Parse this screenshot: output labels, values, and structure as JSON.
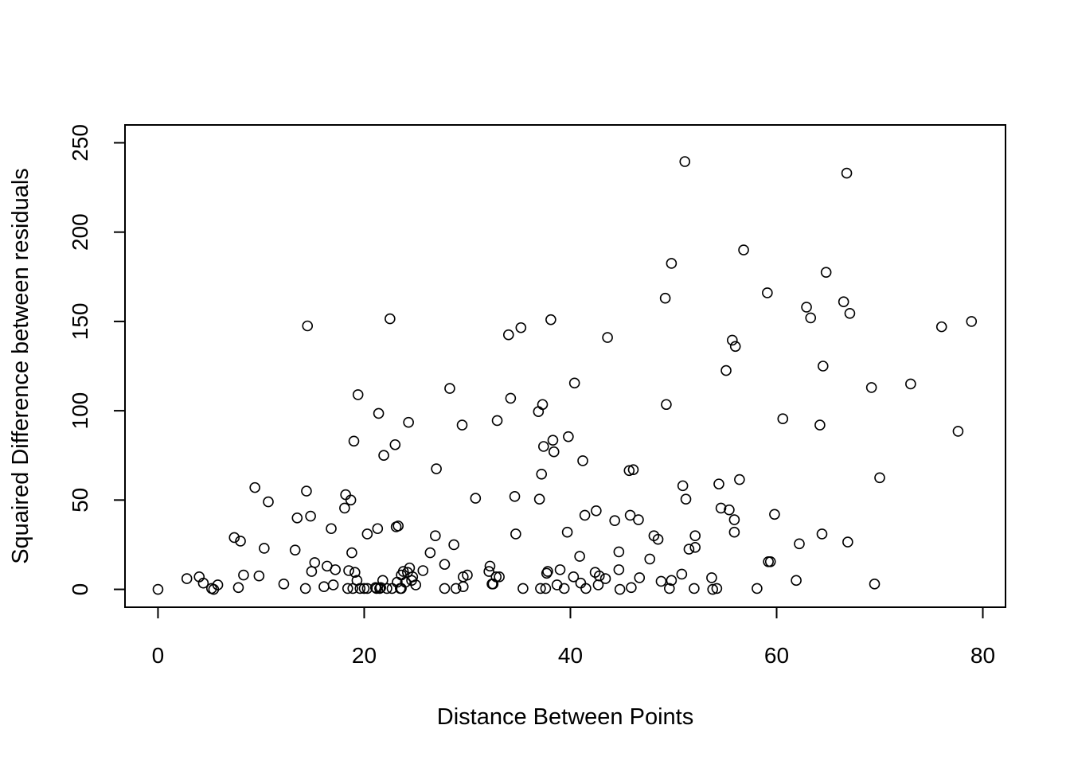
{
  "chart_data": {
    "type": "scatter",
    "title": "",
    "xlabel": "Distance Between Points",
    "ylabel": "Squaired Difference between residuals",
    "xlim": [
      -3.2,
      82.2
    ],
    "ylim": [
      -10,
      260
    ],
    "xticks": [
      0,
      20,
      40,
      60,
      80
    ],
    "yticks": [
      0,
      50,
      100,
      150,
      200,
      250
    ],
    "grid": false,
    "legend": "none",
    "marker": "open-circle",
    "series": [
      {
        "points": [
          [
            0,
            0
          ],
          [
            2.8,
            6
          ],
          [
            4,
            7
          ],
          [
            4.4,
            3.5
          ],
          [
            5.2,
            0.5
          ],
          [
            5.4,
            0
          ],
          [
            5.8,
            2.5
          ],
          [
            7.4,
            29
          ],
          [
            7.8,
            1
          ],
          [
            8,
            27
          ],
          [
            8.3,
            8
          ],
          [
            9.4,
            57
          ],
          [
            9.8,
            7.5
          ],
          [
            10.3,
            23
          ],
          [
            10.7,
            49
          ],
          [
            12.2,
            3
          ],
          [
            13.3,
            22
          ],
          [
            13.5,
            40
          ],
          [
            14.3,
            0.5
          ],
          [
            14.4,
            55
          ],
          [
            14.5,
            147.5
          ],
          [
            14.8,
            41
          ],
          [
            14.9,
            10
          ],
          [
            15.2,
            15
          ],
          [
            16.1,
            1.5
          ],
          [
            16.4,
            13
          ],
          [
            16.8,
            34
          ],
          [
            17,
            2.5
          ],
          [
            17.2,
            11
          ],
          [
            18.1,
            45.5
          ],
          [
            18.2,
            53
          ],
          [
            18.4,
            0.5
          ],
          [
            18.5,
            10.5
          ],
          [
            18.7,
            50
          ],
          [
            18.8,
            20.5
          ],
          [
            18.9,
            0.5
          ],
          [
            19,
            83
          ],
          [
            19.1,
            9.5
          ],
          [
            19.3,
            5
          ],
          [
            19.4,
            109
          ],
          [
            19.6,
            0.5
          ],
          [
            20,
            0.5
          ],
          [
            20.3,
            0.5
          ],
          [
            20.3,
            31
          ],
          [
            21.1,
            1
          ],
          [
            21.2,
            0.5
          ],
          [
            21.3,
            34
          ],
          [
            21.4,
            98.5
          ],
          [
            21.5,
            0.5
          ],
          [
            21.6,
            1
          ],
          [
            21.8,
            5
          ],
          [
            21.9,
            75
          ],
          [
            22.2,
            0.5
          ],
          [
            22.5,
            151.5
          ],
          [
            22.7,
            0.5
          ],
          [
            23,
            81
          ],
          [
            23.1,
            35
          ],
          [
            23.2,
            4
          ],
          [
            23.3,
            35.5
          ],
          [
            23.5,
            0.5
          ],
          [
            23.6,
            0.5
          ],
          [
            23.6,
            8
          ],
          [
            23.8,
            10
          ],
          [
            24,
            4
          ],
          [
            24.2,
            9.5
          ],
          [
            24.3,
            93.5
          ],
          [
            24.4,
            12
          ],
          [
            24.6,
            5
          ],
          [
            24.7,
            7
          ],
          [
            25,
            2.5
          ],
          [
            25.7,
            10.5
          ],
          [
            26.4,
            20.5
          ],
          [
            26.9,
            30
          ],
          [
            27,
            67.5
          ],
          [
            27.8,
            0.5
          ],
          [
            27.8,
            14
          ],
          [
            28.3,
            112.5
          ],
          [
            28.7,
            25
          ],
          [
            28.9,
            0.5
          ],
          [
            29.5,
            92
          ],
          [
            29.6,
            1.5
          ],
          [
            29.6,
            7
          ],
          [
            30,
            8
          ],
          [
            30.8,
            51
          ],
          [
            32.1,
            10
          ],
          [
            32.2,
            13
          ],
          [
            32.4,
            3
          ],
          [
            32.5,
            3
          ],
          [
            32.8,
            7
          ],
          [
            32.9,
            94.5
          ],
          [
            33.1,
            7
          ],
          [
            34,
            142.5
          ],
          [
            34.2,
            107
          ],
          [
            34.6,
            52
          ],
          [
            34.7,
            31
          ],
          [
            35.2,
            146.5
          ],
          [
            35.4,
            0.5
          ],
          [
            36.9,
            99.5
          ],
          [
            37,
            50.5
          ],
          [
            37.1,
            0.5
          ],
          [
            37.2,
            64.5
          ],
          [
            37.3,
            103.5
          ],
          [
            37.4,
            80
          ],
          [
            37.6,
            0.5
          ],
          [
            37.7,
            9
          ],
          [
            37.8,
            10
          ],
          [
            38.1,
            151
          ],
          [
            38.3,
            83.5
          ],
          [
            38.4,
            77
          ],
          [
            38.7,
            2.5
          ],
          [
            39,
            11
          ],
          [
            39.4,
            0.5
          ],
          [
            39.7,
            32
          ],
          [
            39.8,
            85.5
          ],
          [
            40.3,
            7
          ],
          [
            40.4,
            115.5
          ],
          [
            40.9,
            18.5
          ],
          [
            41,
            3.5
          ],
          [
            41.2,
            72
          ],
          [
            41.4,
            41.5
          ],
          [
            41.5,
            0.5
          ],
          [
            42.4,
            9.5
          ],
          [
            42.5,
            44
          ],
          [
            42.7,
            2.5
          ],
          [
            42.8,
            7.5
          ],
          [
            43.4,
            6
          ],
          [
            43.6,
            141
          ],
          [
            44.3,
            38.5
          ],
          [
            44.7,
            11
          ],
          [
            44.7,
            21
          ],
          [
            44.8,
            0
          ],
          [
            45.7,
            66.5
          ],
          [
            45.8,
            41.5
          ],
          [
            45.9,
            1
          ],
          [
            46.1,
            67
          ],
          [
            46.6,
            39
          ],
          [
            46.7,
            6.5
          ],
          [
            47.7,
            17
          ],
          [
            48.1,
            30
          ],
          [
            48.5,
            28
          ],
          [
            48.8,
            4.5
          ],
          [
            49.2,
            163
          ],
          [
            49.3,
            103.5
          ],
          [
            49.6,
            0.5
          ],
          [
            49.8,
            182.5
          ],
          [
            49.8,
            5
          ],
          [
            50.8,
            8.5
          ],
          [
            50.9,
            58
          ],
          [
            51.1,
            239.5
          ],
          [
            51.2,
            50.5
          ],
          [
            51.5,
            22.5
          ],
          [
            52,
            0.5
          ],
          [
            52.1,
            30
          ],
          [
            52.1,
            23.5
          ],
          [
            53.7,
            6.5
          ],
          [
            53.8,
            0
          ],
          [
            54.2,
            0.5
          ],
          [
            54.4,
            59
          ],
          [
            54.6,
            45.5
          ],
          [
            55.1,
            122.5
          ],
          [
            55.4,
            44.5
          ],
          [
            55.7,
            139.5
          ],
          [
            55.9,
            39
          ],
          [
            55.9,
            32
          ],
          [
            56,
            136
          ],
          [
            56.4,
            61.5
          ],
          [
            56.8,
            190
          ],
          [
            58.1,
            0.5
          ],
          [
            59.1,
            166
          ],
          [
            59.2,
            15.5
          ],
          [
            59.4,
            15.5
          ],
          [
            59.8,
            42
          ],
          [
            60.6,
            95.5
          ],
          [
            61.9,
            5
          ],
          [
            62.2,
            25.5
          ],
          [
            62.9,
            158
          ],
          [
            63.3,
            152
          ],
          [
            64.2,
            92
          ],
          [
            64.4,
            31
          ],
          [
            64.5,
            125
          ],
          [
            64.8,
            177.5
          ],
          [
            66.5,
            161
          ],
          [
            66.8,
            233
          ],
          [
            66.9,
            26.5
          ],
          [
            67.1,
            154.5
          ],
          [
            69.2,
            113
          ],
          [
            69.5,
            3
          ],
          [
            70,
            62.5
          ],
          [
            73,
            115
          ],
          [
            76,
            147
          ],
          [
            77.6,
            88.5
          ],
          [
            78.9,
            150
          ]
        ]
      }
    ]
  }
}
